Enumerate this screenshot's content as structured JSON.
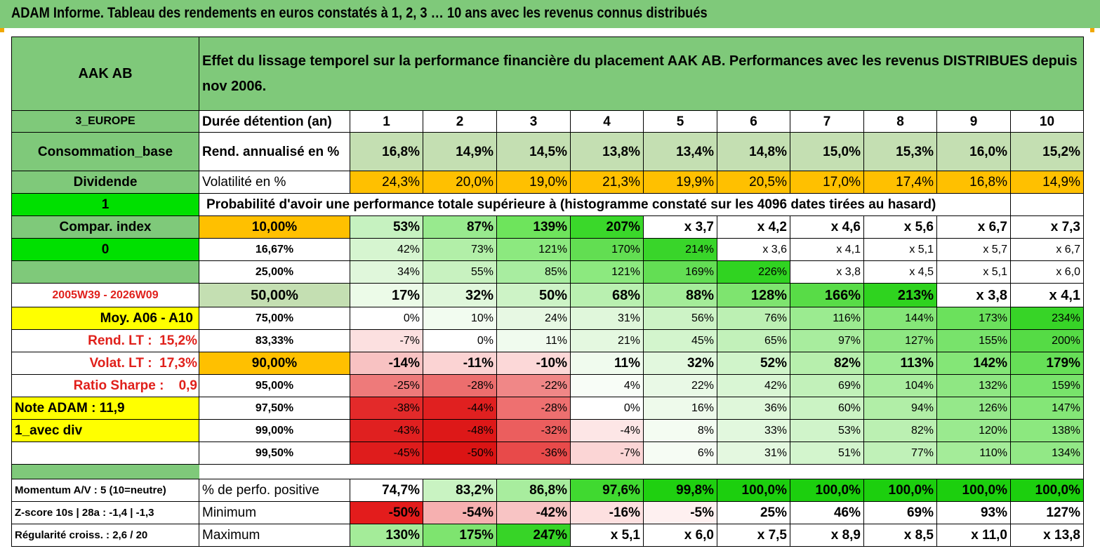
{
  "title": "ADAM Informe. Tableau des rendements en euros constatés à 1, 2, 3 … 10 ans avec les revenus connus distribués",
  "header": {
    "fund": "AAK AB",
    "description": "Effet du lissage temporel sur la performance financière du placement AAK AB. Performances avec les revenus DISTRIBUES depuis nov 2006."
  },
  "side": {
    "region": "3_EUROPE",
    "sector": "Consommation_base",
    "type": "Dividende",
    "flag1": "1",
    "compar": "Compar. index",
    "flag0": "0",
    "period": "2005W39 - 2026W09",
    "moy": "Moy. A06 - A10",
    "rend_lt_label": "Rend. LT :",
    "rend_lt_value": "15,2%",
    "volat_lt_label": "Volat. LT :",
    "volat_lt_value": "17,3%",
    "sharpe_label": "Ratio Sharpe :",
    "sharpe_value": "0,9",
    "note": "Note ADAM : 11,9",
    "avec_div": "1_avec div",
    "momentum": "Momentum A/V : 5 (10=neutre)",
    "zscore": "Z-score 10s | 28a : -1,4 | -1,3",
    "regularite": "Régularité croiss. : 2,6 / 20"
  },
  "labels": {
    "duree": "Durée détention (an)",
    "rend": "Rend. annualisé en %",
    "vol": "Volatilité en %",
    "prob": "Probabilité d'avoir une performance totale supérieure à (histogramme constaté sur les 4096 dates tirées au hasard)",
    "pos": "% de perfo. positive",
    "min": "Minimum",
    "max": "Maximum"
  },
  "years": [
    "1",
    "2",
    "3",
    "4",
    "5",
    "6",
    "7",
    "8",
    "9",
    "10"
  ],
  "rend": [
    "16,8%",
    "14,9%",
    "14,5%",
    "13,8%",
    "13,4%",
    "14,8%",
    "15,0%",
    "15,3%",
    "16,0%",
    "15,2%"
  ],
  "vol": [
    "24,3%",
    "20,0%",
    "19,0%",
    "21,3%",
    "19,9%",
    "20,5%",
    "17,0%",
    "17,4%",
    "16,8%",
    "14,9%"
  ],
  "prob": [
    {
      "p": "10,00%",
      "v": [
        "53%",
        "87%",
        "139%",
        "207%",
        "x 3,7",
        "x 4,2",
        "x 4,6",
        "x 5,6",
        "x 6,7",
        "x 7,3"
      ]
    },
    {
      "p": "16,67%",
      "v": [
        "42%",
        "73%",
        "121%",
        "170%",
        "214%",
        "x 3,6",
        "x 4,1",
        "x 5,1",
        "x 5,7",
        "x 6,7"
      ]
    },
    {
      "p": "25,00%",
      "v": [
        "34%",
        "55%",
        "85%",
        "121%",
        "169%",
        "226%",
        "x 3,8",
        "x 4,5",
        "x 5,1",
        "x 6,0"
      ]
    },
    {
      "p": "50,00%",
      "v": [
        "17%",
        "32%",
        "50%",
        "68%",
        "88%",
        "128%",
        "166%",
        "213%",
        "x 3,8",
        "x 4,1"
      ]
    },
    {
      "p": "75,00%",
      "v": [
        "0%",
        "10%",
        "24%",
        "31%",
        "56%",
        "76%",
        "116%",
        "144%",
        "173%",
        "234%"
      ]
    },
    {
      "p": "83,33%",
      "v": [
        "-7%",
        "0%",
        "11%",
        "21%",
        "45%",
        "65%",
        "97%",
        "127%",
        "155%",
        "200%"
      ]
    },
    {
      "p": "90,00%",
      "v": [
        "-14%",
        "-11%",
        "-10%",
        "11%",
        "32%",
        "52%",
        "82%",
        "113%",
        "142%",
        "179%"
      ]
    },
    {
      "p": "95,00%",
      "v": [
        "-25%",
        "-28%",
        "-22%",
        "4%",
        "22%",
        "42%",
        "69%",
        "104%",
        "132%",
        "159%"
      ]
    },
    {
      "p": "97,50%",
      "v": [
        "-38%",
        "-44%",
        "-28%",
        "0%",
        "16%",
        "36%",
        "60%",
        "94%",
        "126%",
        "147%"
      ]
    },
    {
      "p": "99,00%",
      "v": [
        "-43%",
        "-48%",
        "-32%",
        "-4%",
        "8%",
        "33%",
        "53%",
        "82%",
        "120%",
        "138%"
      ]
    },
    {
      "p": "99,50%",
      "v": [
        "-45%",
        "-50%",
        "-36%",
        "-7%",
        "6%",
        "31%",
        "51%",
        "77%",
        "110%",
        "134%"
      ]
    }
  ],
  "pos": [
    "74,7%",
    "83,2%",
    "86,8%",
    "97,6%",
    "99,8%",
    "100,0%",
    "100,0%",
    "100,0%",
    "100,0%",
    "100,0%"
  ],
  "min": [
    "-50%",
    "-54%",
    "-42%",
    "-16%",
    "-5%",
    "25%",
    "46%",
    "69%",
    "93%",
    "127%"
  ],
  "max": [
    "130%",
    "175%",
    "247%",
    "x 5,1",
    "x 6,0",
    "x 7,5",
    "x 8,9",
    "x 8,5",
    "x 11,0",
    "x 13,8"
  ],
  "colors": {
    "header_green": "#7fc97a",
    "light_green": "#c4dfb2",
    "orange": "#ffc000",
    "yellow": "#ffff00",
    "bright_green": "#00e000",
    "red_text": "#e0201b"
  }
}
